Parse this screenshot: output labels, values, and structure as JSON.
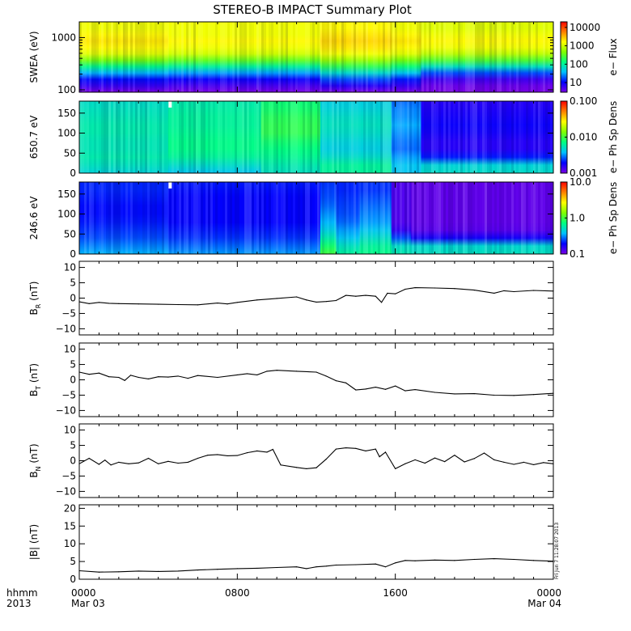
{
  "title": "STEREO-B IMPACT Summary Plot",
  "footer": {
    "stamp": "Fri Jun  7 11:28:07 2013",
    "row1_label": "hhmm",
    "row2_label": "2013"
  },
  "x_ticks": [
    {
      "hours": 0,
      "label": "0000",
      "date": "Mar 03"
    },
    {
      "hours": 8,
      "label": "0800",
      "date": ""
    },
    {
      "hours": 16,
      "label": "1600",
      "date": ""
    },
    {
      "hours": 24,
      "label": "0000",
      "date": "Mar 04"
    }
  ],
  "colors": {
    "spectrogram_scale": [
      "#7a00e6",
      "#0000ff",
      "#00c0ff",
      "#00ff80",
      "#80ff00",
      "#ffff00",
      "#ff8000",
      "#ff0000"
    ]
  },
  "chart_data": [
    {
      "type": "heatmap",
      "ylabel": "SWEA (eV)",
      "y_scale": "log",
      "ylim": [
        90,
        2000
      ],
      "y_ticks": [
        {
          "v": 100,
          "label": "100"
        },
        {
          "v": 1000,
          "label": "1000"
        }
      ],
      "colorbar": {
        "label": "e− Flux",
        "scale": "log",
        "range": [
          3,
          20000
        ],
        "ticks": [
          {
            "v": 10,
            "label": "10"
          },
          {
            "v": 100,
            "label": "100"
          },
          {
            "v": 1000,
            "label": "1000"
          },
          {
            "v": 10000,
            "label": "10000"
          }
        ]
      },
      "time_segments": [
        0,
        3.5,
        4.5,
        12.2,
        15.8,
        17.3,
        24
      ],
      "profiles": [
        [
          0.0,
          0.08,
          0.15,
          0.28,
          0.42,
          0.56,
          0.68,
          0.72,
          0.74,
          0.72,
          0.7,
          0.7
        ],
        [
          0.0,
          0.08,
          0.15,
          0.28,
          0.42,
          0.56,
          0.68,
          0.72,
          0.74,
          0.72,
          0.7,
          0.7
        ],
        [
          0.0,
          0.06,
          0.13,
          0.26,
          0.4,
          0.54,
          0.66,
          0.7,
          0.72,
          0.7,
          0.7,
          0.7
        ],
        [
          0.0,
          0.1,
          0.2,
          0.34,
          0.48,
          0.6,
          0.7,
          0.74,
          0.76,
          0.74,
          0.72,
          0.72
        ],
        [
          0.0,
          0.08,
          0.16,
          0.3,
          0.44,
          0.56,
          0.68,
          0.72,
          0.74,
          0.72,
          0.7,
          0.7
        ],
        [
          0.0,
          0.02,
          0.07,
          0.2,
          0.36,
          0.52,
          0.64,
          0.7,
          0.72,
          0.7,
          0.68,
          0.68
        ]
      ]
    },
    {
      "type": "heatmap",
      "ylabel": "650.7 eV",
      "ylim": [
        0,
        180
      ],
      "y_ticks": [
        {
          "v": 0,
          "label": "0"
        },
        {
          "v": 50,
          "label": "50"
        },
        {
          "v": 100,
          "label": "100"
        },
        {
          "v": 150,
          "label": "150"
        }
      ],
      "colorbar": {
        "label": "e− Ph Sp Dens",
        "scale": "log",
        "range": [
          0.001,
          0.1
        ],
        "ticks": [
          {
            "v": 0.001,
            "label": "0.001"
          },
          {
            "v": 0.01,
            "label": "0.010"
          },
          {
            "v": 0.1,
            "label": "0.100"
          }
        ]
      },
      "time_segments": [
        0,
        4.5,
        9.2,
        12.2,
        15.8,
        17.3,
        24
      ],
      "profiles": [
        [
          0.33,
          0.36,
          0.38,
          0.37,
          0.37,
          0.38,
          0.38,
          0.37,
          0.36,
          0.35
        ],
        [
          0.3,
          0.35,
          0.4,
          0.42,
          0.42,
          0.41,
          0.4,
          0.4,
          0.39,
          0.38
        ],
        [
          0.36,
          0.38,
          0.41,
          0.43,
          0.45,
          0.48,
          0.48,
          0.47,
          0.45,
          0.44
        ],
        [
          0.4,
          0.4,
          0.35,
          0.32,
          0.33,
          0.35,
          0.36,
          0.35,
          0.33,
          0.32
        ],
        [
          0.3,
          0.3,
          0.26,
          0.22,
          0.23,
          0.25,
          0.27,
          0.25,
          0.24,
          0.22
        ],
        [
          0.35,
          0.33,
          0.16,
          0.1,
          0.1,
          0.12,
          0.13,
          0.12,
          0.11,
          0.1
        ]
      ],
      "gaps": [
        {
          "hours": 4.6
        }
      ]
    },
    {
      "type": "heatmap",
      "ylabel": "246.6 eV",
      "ylim": [
        0,
        180
      ],
      "y_ticks": [
        {
          "v": 0,
          "label": "0"
        },
        {
          "v": 50,
          "label": "50"
        },
        {
          "v": 100,
          "label": "100"
        },
        {
          "v": 150,
          "label": "150"
        }
      ],
      "colorbar": {
        "label": "e− Ph Sp Dens",
        "scale": "log",
        "range": [
          0.1,
          10
        ],
        "ticks": [
          {
            "v": 0.1,
            "label": "0.1"
          },
          {
            "v": 1,
            "label": "1.0"
          },
          {
            "v": 10,
            "label": "10.0"
          }
        ]
      },
      "time_segments": [
        0,
        4.5,
        12.2,
        13.0,
        14.2,
        15.8,
        16.8,
        24
      ],
      "profiles": [
        [
          0.28,
          0.24,
          0.2,
          0.18,
          0.16,
          0.15,
          0.15,
          0.16,
          0.17,
          0.17
        ],
        [
          0.26,
          0.22,
          0.18,
          0.16,
          0.14,
          0.14,
          0.14,
          0.14,
          0.15,
          0.16
        ],
        [
          0.5,
          0.45,
          0.38,
          0.32,
          0.28,
          0.25,
          0.22,
          0.2,
          0.19,
          0.18
        ],
        [
          0.4,
          0.36,
          0.3,
          0.26,
          0.22,
          0.2,
          0.19,
          0.18,
          0.17,
          0.17
        ],
        [
          0.42,
          0.4,
          0.35,
          0.3,
          0.26,
          0.24,
          0.22,
          0.2,
          0.18,
          0.18
        ],
        [
          0.38,
          0.35,
          0.2,
          0.08,
          0.05,
          0.05,
          0.05,
          0.05,
          0.05,
          0.05
        ],
        [
          0.36,
          0.34,
          0.12,
          0.04,
          0.03,
          0.03,
          0.03,
          0.03,
          0.03,
          0.03
        ]
      ],
      "gaps": [
        {
          "hours": 4.6
        }
      ]
    },
    {
      "type": "line",
      "ylabel_main": "B",
      "ylabel_sub": "R",
      "ylabel_unit": " (nT)",
      "ylim": [
        -12,
        12
      ],
      "y_ticks": [
        {
          "v": -10,
          "label": "−10"
        },
        {
          "v": -5,
          "label": "−5"
        },
        {
          "v": 0,
          "label": "0"
        },
        {
          "v": 5,
          "label": "5"
        },
        {
          "v": 10,
          "label": "10"
        }
      ],
      "x": [
        0,
        0.5,
        1,
        1.5,
        2,
        3,
        4,
        5,
        6,
        7,
        7.5,
        8,
        9,
        10,
        11,
        11.5,
        12,
        12.5,
        13,
        13.5,
        14,
        14.5,
        15,
        15.3,
        15.6,
        16,
        16.5,
        17,
        18,
        19,
        20,
        21,
        21.5,
        22,
        23,
        24
      ],
      "y": [
        -1.2,
        -1.8,
        -1.4,
        -1.7,
        -1.8,
        -1.9,
        -2.0,
        -2.1,
        -2.2,
        -1.6,
        -1.9,
        -1.4,
        -0.6,
        -0.1,
        0.4,
        -0.6,
        -1.3,
        -1.1,
        -0.8,
        0.9,
        0.6,
        0.9,
        0.6,
        -1.4,
        1.6,
        1.4,
        2.9,
        3.4,
        3.3,
        3.1,
        2.6,
        1.6,
        2.4,
        2.1,
        2.5,
        2.3
      ]
    },
    {
      "type": "line",
      "ylabel_main": "B",
      "ylabel_sub": "T",
      "ylabel_unit": " (nT)",
      "ylim": [
        -12,
        12
      ],
      "y_ticks": [
        {
          "v": -10,
          "label": "−10"
        },
        {
          "v": -5,
          "label": "−5"
        },
        {
          "v": 0,
          "label": "0"
        },
        {
          "v": 5,
          "label": "5"
        },
        {
          "v": 10,
          "label": "10"
        }
      ],
      "x": [
        0,
        0.5,
        1,
        1.5,
        2,
        2.3,
        2.6,
        3,
        3.5,
        4,
        4.5,
        5,
        5.5,
        6,
        7,
        8,
        8.5,
        9,
        9.5,
        10,
        11,
        12,
        12.5,
        13,
        13.5,
        14,
        14.5,
        15,
        15.5,
        16,
        16.5,
        17,
        18,
        19,
        20,
        21,
        22,
        23,
        24
      ],
      "y": [
        2.5,
        1.8,
        2.2,
        1.0,
        0.8,
        -0.2,
        1.5,
        0.8,
        0.3,
        1.0,
        0.9,
        1.2,
        0.5,
        1.4,
        0.8,
        1.6,
        2.0,
        1.6,
        2.8,
        3.1,
        2.8,
        2.5,
        1.2,
        -0.3,
        -1.0,
        -3.3,
        -3.0,
        -2.4,
        -3.1,
        -2.0,
        -3.6,
        -3.2,
        -4.1,
        -4.6,
        -4.5,
        -5.0,
        -5.1,
        -4.8,
        -4.4
      ]
    },
    {
      "type": "line",
      "ylabel_main": "B",
      "ylabel_sub": "N",
      "ylabel_unit": " (nT)",
      "ylim": [
        -12,
        12
      ],
      "y_ticks": [
        {
          "v": -10,
          "label": "−10"
        },
        {
          "v": -5,
          "label": "−5"
        },
        {
          "v": 0,
          "label": "0"
        },
        {
          "v": 5,
          "label": "5"
        },
        {
          "v": 10,
          "label": "10"
        }
      ],
      "x": [
        0,
        0.5,
        1,
        1.3,
        1.6,
        2,
        2.5,
        3,
        3.5,
        4,
        4.5,
        5,
        5.5,
        6,
        6.5,
        7,
        7.5,
        8,
        8.5,
        9,
        9.5,
        9.8,
        10.2,
        11,
        11.5,
        12,
        12.5,
        13,
        13.5,
        14,
        14.5,
        15,
        15.2,
        15.5,
        16,
        16.5,
        17,
        17.5,
        18,
        18.5,
        19,
        19.5,
        20,
        20.5,
        21,
        21.5,
        22,
        22.5,
        23,
        23.5,
        24
      ],
      "y": [
        -1.0,
        0.8,
        -1.2,
        0.2,
        -1.4,
        -0.5,
        -1.0,
        -0.7,
        0.8,
        -1.0,
        -0.2,
        -0.8,
        -0.5,
        0.8,
        1.8,
        2.0,
        1.6,
        1.7,
        2.6,
        3.2,
        2.8,
        3.7,
        -1.4,
        -2.2,
        -2.6,
        -2.3,
        0.5,
        3.8,
        4.2,
        4.0,
        3.2,
        3.8,
        1.3,
        2.8,
        -2.6,
        -1.0,
        0.3,
        -0.8,
        0.9,
        -0.3,
        1.8,
        -0.4,
        0.7,
        2.5,
        0.3,
        -0.5,
        -1.2,
        -0.5,
        -1.3,
        -0.6,
        -1.0
      ]
    },
    {
      "type": "line",
      "ylabel_main": "|B|",
      "ylabel_sub": "",
      "ylabel_unit": " (nT)",
      "ylim": [
        0,
        21
      ],
      "y_ticks": [
        {
          "v": 0,
          "label": "0"
        },
        {
          "v": 5,
          "label": "5"
        },
        {
          "v": 10,
          "label": "10"
        },
        {
          "v": 15,
          "label": "15"
        },
        {
          "v": 20,
          "label": "20"
        }
      ],
      "x": [
        0,
        1,
        2,
        3,
        4,
        5,
        6,
        7,
        8,
        9,
        10,
        11,
        11.5,
        12,
        12.5,
        13,
        14,
        15,
        15.5,
        16,
        16.5,
        17,
        18,
        19,
        20,
        21,
        22,
        23,
        24
      ],
      "y": [
        2.4,
        2.0,
        2.1,
        2.3,
        2.2,
        2.3,
        2.6,
        2.8,
        3.0,
        3.1,
        3.3,
        3.5,
        3.0,
        3.5,
        3.7,
        4.0,
        4.1,
        4.3,
        3.5,
        4.6,
        5.3,
        5.2,
        5.4,
        5.3,
        5.6,
        5.8,
        5.6,
        5.3,
        5.1
      ]
    }
  ]
}
